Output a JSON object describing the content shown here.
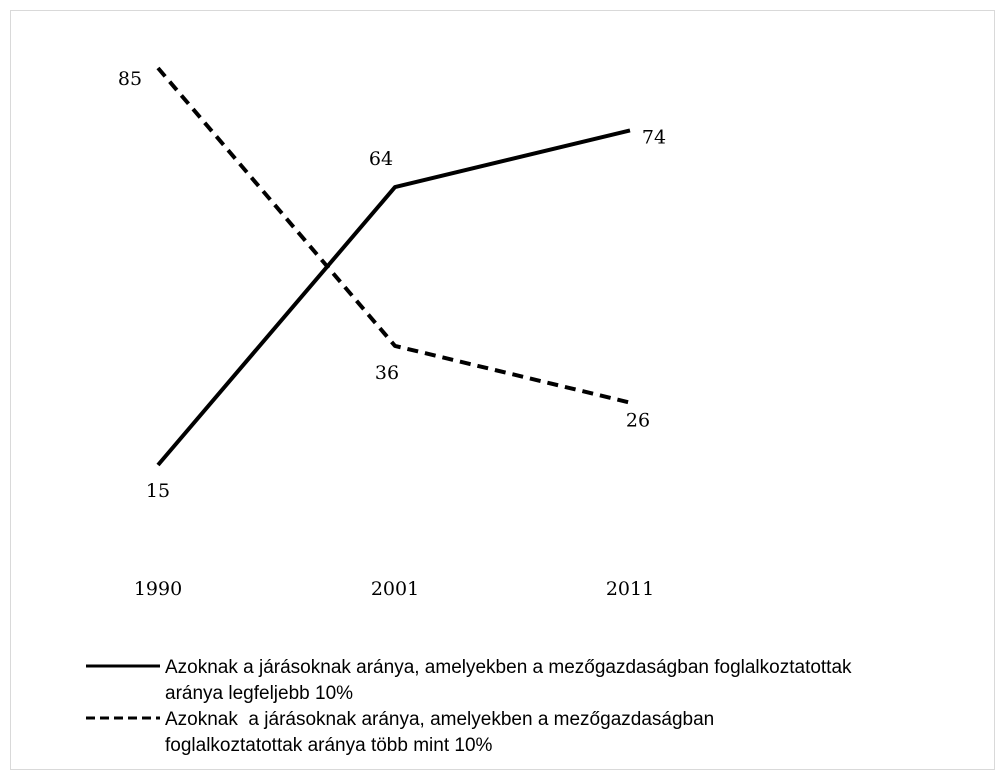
{
  "chart_data": {
    "type": "line",
    "x": [
      "1990",
      "2001",
      "2011"
    ],
    "ylim": [
      0,
      100
    ],
    "grid": false,
    "legend_position": "bottom",
    "series": [
      {
        "name": "Azoknak a járásoknak aránya, amelyekben a mezőgazdaságban foglalkoztatottak aránya legfeljebb 10%",
        "name_lines": [
          "Azoknak a járásoknak aránya, amelyekben a mezőgazdaságban foglalkoztatottak",
          "aránya legfeljebb 10%"
        ],
        "style": "solid",
        "color": "#000000",
        "values": [
          15,
          64,
          74
        ],
        "labels": [
          "15",
          "64",
          "74"
        ]
      },
      {
        "name": "Azoknak a járásoknak aránya, amelyekben a mezőgazdaságban foglalkoztatottak aránya több mint 10%",
        "name_lines": [
          "Azoknak  a járásoknak aránya, amelyekben a mezőgazdaságban",
          "foglalkoztatottak aránya több mint 10%"
        ],
        "style": "dashed",
        "color": "#000000",
        "values": [
          85,
          36,
          26
        ],
        "labels": [
          "85",
          "36",
          "26"
        ]
      }
    ]
  }
}
